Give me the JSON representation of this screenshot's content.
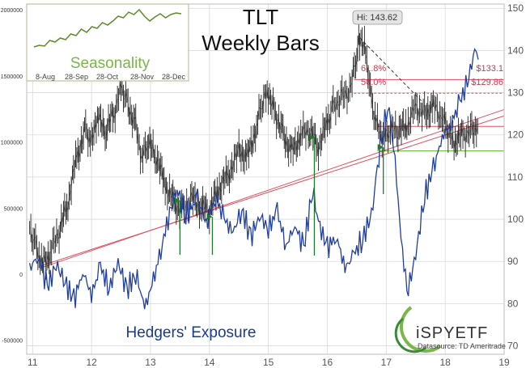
{
  "chart_data": {
    "type": "line",
    "title": "TLT",
    "subtitle": "Weekly Bars",
    "x_ticks": [
      "11",
      "12",
      "13",
      "14",
      "15",
      "16",
      "17",
      "18",
      "19"
    ],
    "x_range": [
      10.9,
      19.0
    ],
    "y_right": {
      "ticks": [
        "70",
        "80",
        "90",
        "100",
        "110",
        "120",
        "130",
        "140",
        "150"
      ],
      "range": [
        68,
        151
      ]
    },
    "y_left": {
      "ticks": [
        "-500000",
        "0",
        "500000",
        "1000000",
        "1500000",
        "2000000"
      ],
      "range": [
        -600000,
        2050000
      ]
    },
    "price_series": {
      "name": "TLT",
      "points": [
        [
          10.95,
          98
        ],
        [
          11.05,
          94
        ],
        [
          11.15,
          89
        ],
        [
          11.3,
          92
        ],
        [
          11.45,
          97
        ],
        [
          11.6,
          104
        ],
        [
          11.75,
          115
        ],
        [
          11.9,
          121
        ],
        [
          12.0,
          118
        ],
        [
          12.1,
          124
        ],
        [
          12.25,
          121
        ],
        [
          12.4,
          126
        ],
        [
          12.5,
          132
        ],
        [
          12.6,
          128
        ],
        [
          12.75,
          122
        ],
        [
          12.85,
          114
        ],
        [
          12.95,
          118
        ],
        [
          13.1,
          115
        ],
        [
          13.25,
          108
        ],
        [
          13.4,
          104
        ],
        [
          13.55,
          102
        ],
        [
          13.7,
          105
        ],
        [
          13.85,
          103
        ],
        [
          14.0,
          102
        ],
        [
          14.15,
          107
        ],
        [
          14.3,
          110
        ],
        [
          14.5,
          116
        ],
        [
          14.65,
          115
        ],
        [
          14.8,
          122
        ],
        [
          14.9,
          128
        ],
        [
          15.0,
          130
        ],
        [
          15.1,
          126
        ],
        [
          15.25,
          120
        ],
        [
          15.4,
          116
        ],
        [
          15.55,
          120
        ],
        [
          15.7,
          121
        ],
        [
          15.85,
          117
        ],
        [
          16.0,
          123
        ],
        [
          16.1,
          127
        ],
        [
          16.25,
          129
        ],
        [
          16.4,
          131
        ],
        [
          16.5,
          139
        ],
        [
          16.55,
          143
        ],
        [
          16.65,
          140
        ],
        [
          16.75,
          128
        ],
        [
          16.85,
          122
        ],
        [
          16.95,
          119
        ],
        [
          17.05,
          121
        ],
        [
          17.2,
          121
        ],
        [
          17.35,
          122
        ],
        [
          17.5,
          127
        ],
        [
          17.65,
          125
        ],
        [
          17.8,
          127
        ],
        [
          17.95,
          124
        ],
        [
          18.05,
          121
        ],
        [
          18.15,
          118
        ],
        [
          18.3,
          120
        ],
        [
          18.45,
          121
        ],
        [
          18.55,
          122
        ]
      ]
    },
    "exposure_series": {
      "name": "Hedgers' Exposure",
      "points": [
        [
          10.95,
          50000
        ],
        [
          11.1,
          150000
        ],
        [
          11.25,
          -100000
        ],
        [
          11.4,
          80000
        ],
        [
          11.55,
          -50000
        ],
        [
          11.7,
          -200000
        ],
        [
          11.85,
          30000
        ],
        [
          12.0,
          -150000
        ],
        [
          12.15,
          60000
        ],
        [
          12.3,
          -100000
        ],
        [
          12.45,
          100000
        ],
        [
          12.6,
          -120000
        ],
        [
          12.75,
          20000
        ],
        [
          12.9,
          -250000
        ],
        [
          13.05,
          -50000
        ],
        [
          13.2,
          250000
        ],
        [
          13.35,
          500000
        ],
        [
          13.45,
          650000
        ],
        [
          13.6,
          450000
        ],
        [
          13.8,
          580000
        ],
        [
          13.95,
          380000
        ],
        [
          14.1,
          600000
        ],
        [
          14.25,
          420000
        ],
        [
          14.4,
          320000
        ],
        [
          14.55,
          500000
        ],
        [
          14.7,
          280000
        ],
        [
          14.85,
          450000
        ],
        [
          15.0,
          350000
        ],
        [
          15.15,
          480000
        ],
        [
          15.3,
          220000
        ],
        [
          15.45,
          380000
        ],
        [
          15.6,
          200000
        ],
        [
          15.75,
          650000
        ],
        [
          15.85,
          400000
        ],
        [
          16.0,
          200000
        ],
        [
          16.15,
          300000
        ],
        [
          16.3,
          50000
        ],
        [
          16.45,
          150000
        ],
        [
          16.6,
          280000
        ],
        [
          16.75,
          450000
        ],
        [
          16.85,
          800000
        ],
        [
          16.95,
          1150000
        ],
        [
          17.05,
          1250000
        ],
        [
          17.15,
          850000
        ],
        [
          17.25,
          300000
        ],
        [
          17.35,
          -150000
        ],
        [
          17.5,
          150000
        ],
        [
          17.65,
          600000
        ],
        [
          17.8,
          800000
        ],
        [
          17.95,
          1050000
        ],
        [
          18.1,
          1150000
        ],
        [
          18.25,
          1300000
        ],
        [
          18.4,
          1500000
        ],
        [
          18.5,
          1700000
        ],
        [
          18.56,
          1630000
        ]
      ]
    },
    "levels": [
      {
        "label": "$133.1",
        "y": 133.1
      },
      {
        "label": "$129.86",
        "y": 129.86
      }
    ],
    "fib_labels": [
      {
        "label": "61.8%",
        "y": 133.1
      },
      {
        "label": "50.0%",
        "y": 129.86
      }
    ],
    "high_label": "Hi: 143.62",
    "legend_label": "Hedgers' Exposure",
    "inset": {
      "label": "Seasonality",
      "ticks": [
        "8-Aug",
        "28-Sep",
        "28-Oct",
        "28-Nov",
        "28-Dec"
      ]
    },
    "branding": {
      "name": "iSPYETF",
      "source": "Datasource: TD Ameritrade"
    },
    "colors": {
      "price": "#222222",
      "exposure": "#1f3ea0",
      "trendline": "#e0505f",
      "support": "#6fc043",
      "arrow": "#1f7a2c",
      "seasonality": "#5e8a2a"
    }
  }
}
